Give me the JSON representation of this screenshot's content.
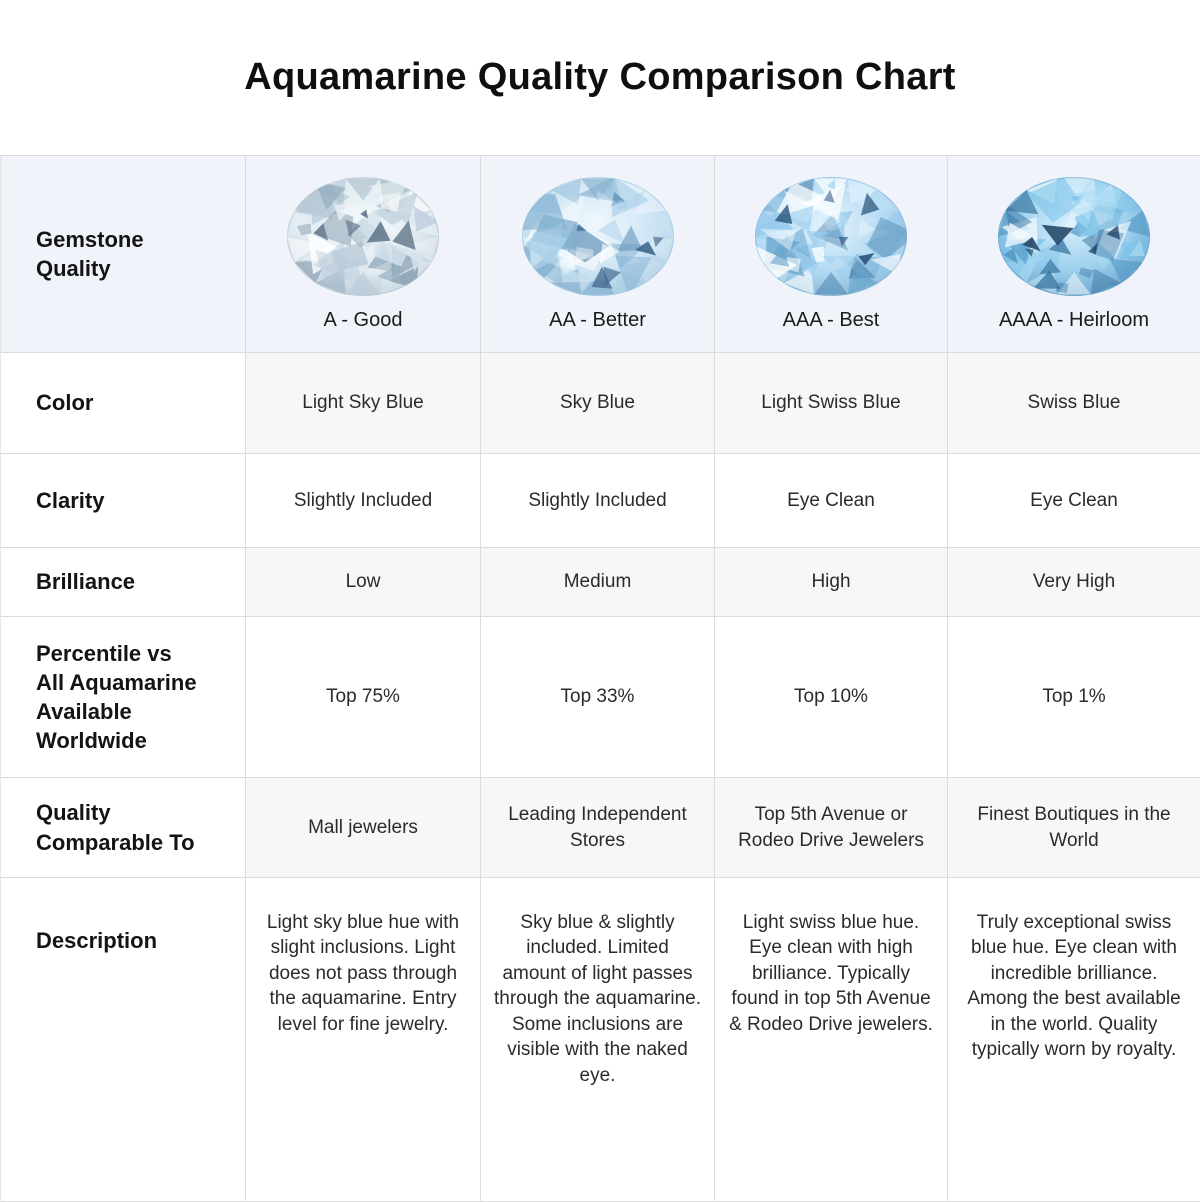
{
  "title": "Aquamarine Quality Comparison Chart",
  "chart_data": {
    "type": "table",
    "title": "Aquamarine Quality Comparison Chart",
    "header_label": "Gemstone Quality",
    "grades": [
      {
        "caption": "A - Good",
        "palette": {
          "light": "#f6fafc",
          "base": "#dfe9f0",
          "dark": "#b4c4d1",
          "accent": "#5c7286",
          "facets": [
            "#ffffff",
            "#eef4f8",
            "#d4e2ec",
            "#b9cbd9",
            "#97afc0",
            "#7b93a6"
          ]
        }
      },
      {
        "caption": "AA - Better",
        "palette": {
          "light": "#f0f8fd",
          "base": "#cfe5f4",
          "dark": "#9dc2dc",
          "accent": "#3f678c",
          "facets": [
            "#ffffff",
            "#e6f3fb",
            "#cae2f2",
            "#aacfe8",
            "#84b2d2",
            "#6394b8"
          ]
        }
      },
      {
        "caption": "AAA - Best",
        "palette": {
          "light": "#e6f4fd",
          "base": "#b4daf3",
          "dark": "#7aaed2",
          "accent": "#27527a",
          "facets": [
            "#ffffff",
            "#dcf0fc",
            "#bce0f6",
            "#97cbec",
            "#6ba6cd",
            "#4a82ab"
          ]
        }
      },
      {
        "caption": "AAAA - Heirloom",
        "palette": {
          "light": "#d9effc",
          "base": "#9bd0ee",
          "dark": "#5d97c0",
          "accent": "#163a5e",
          "facets": [
            "#f2fafe",
            "#cdeafa",
            "#a5d8f2",
            "#7cc3e9",
            "#4f94c2",
            "#2f6b99"
          ]
        }
      }
    ],
    "rows": [
      {
        "label": "Color",
        "values": [
          "Light Sky Blue",
          "Sky Blue",
          "Light Swiss Blue",
          "Swiss Blue"
        ]
      },
      {
        "label": "Clarity",
        "values": [
          "Slightly Included",
          "Slightly Included",
          "Eye Clean",
          "Eye Clean"
        ]
      },
      {
        "label": "Brilliance",
        "values": [
          "Low",
          "Medium",
          "High",
          "Very High"
        ]
      },
      {
        "label": "Percentile vs All Aquamarine Available Worldwide",
        "values": [
          "Top 75%",
          "Top 33%",
          "Top 10%",
          "Top 1%"
        ]
      },
      {
        "label": "Quality Comparable To",
        "values": [
          "Mall jewelers",
          "Leading Independent Stores",
          "Top 5th Avenue or Rodeo Drive Jewelers",
          "Finest Boutiques in the World"
        ]
      },
      {
        "label": "Description",
        "values": [
          "Light sky blue hue with slight inclusions. Light does not pass through the aquamarine. Entry level for fine jewelry.",
          "Sky blue & slightly included. Limited amount of light passes through the aquamarine. Some inclusions are visible with the naked eye.",
          "Light swiss blue hue. Eye clean with high brilliance. Typically found in top 5th Avenue & Rodeo Drive jewelers.",
          "Truly exceptional swiss blue hue. Eye clean with incredible brilliance. Among the best available in the world. Quality typically worn by royalty."
        ]
      }
    ]
  },
  "colors": {
    "header_bg": "#f0f4fa",
    "shaded_row_bg": "#f7f7f7",
    "border": "#dcdcdc",
    "title_text": "#0f0f0f",
    "body_text": "#2b2b2b"
  }
}
